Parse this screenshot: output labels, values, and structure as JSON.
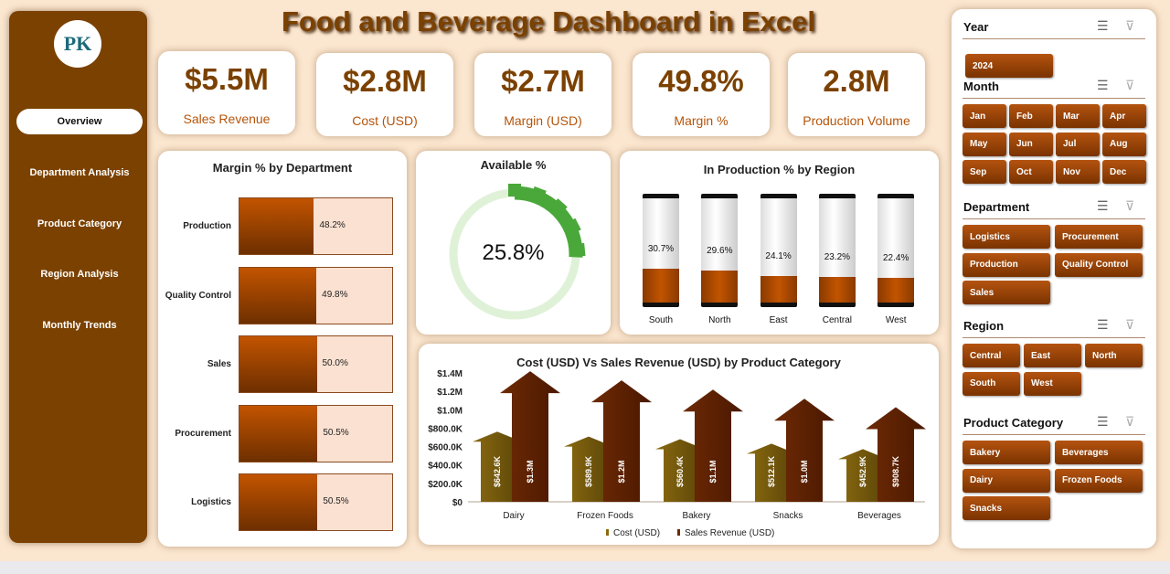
{
  "title": "Food and Beverage Dashboard in Excel",
  "logo_text": "PK",
  "nav": [
    {
      "label": "Overview",
      "active": true
    },
    {
      "label": "Department Analysis"
    },
    {
      "label": "Product Category"
    },
    {
      "label": "Region Analysis"
    },
    {
      "label": "Monthly Trends"
    }
  ],
  "kpis": [
    {
      "value": "$5.5M",
      "label": "Sales Revenue"
    },
    {
      "value": "$2.8M",
      "label": "Cost (USD)"
    },
    {
      "value": "$2.7M",
      "label": "Margin (USD)"
    },
    {
      "value": "49.8%",
      "label": "Margin %"
    },
    {
      "value": "2.8M",
      "label": "Production Volume"
    }
  ],
  "chart_data": [
    {
      "type": "bar",
      "title": "Margin % by Department",
      "categories": [
        "Production",
        "Quality Control",
        "Sales",
        "Procurement",
        "Logistics"
      ],
      "values": [
        48.2,
        49.8,
        50.0,
        50.5,
        50.5
      ],
      "labels": [
        "48.2%",
        "49.8%",
        "50.0%",
        "50.5%",
        "50.5%"
      ],
      "colors": {
        "fill": "#c25400",
        "track": "#fbe1d1"
      }
    },
    {
      "type": "pie",
      "title": "Available %",
      "value": 25.8,
      "label": "25.8%",
      "colors": {
        "value": "#4aa83a",
        "rest": "#dff2d8"
      }
    },
    {
      "type": "bar",
      "title": "In Production % by Region",
      "categories": [
        "South",
        "North",
        "East",
        "Central",
        "West"
      ],
      "values": [
        30.7,
        29.6,
        24.1,
        23.2,
        22.4
      ],
      "labels": [
        "30.7%",
        "29.6%",
        "24.1%",
        "23.2%",
        "22.4%"
      ]
    },
    {
      "type": "bar",
      "title": "Cost (USD) Vs Sales Revenue (USD) by Product Category",
      "categories": [
        "Dairy",
        "Frozen Foods",
        "Bakery",
        "Snacks",
        "Beverages"
      ],
      "ylim": [
        0,
        1400000
      ],
      "yticks": [
        "$0",
        "$200.0K",
        "$400.0K",
        "$600.0K",
        "$800.0K",
        "$1.0M",
        "$1.2M",
        "$1.4M"
      ],
      "legend_position": "bottom",
      "series": [
        {
          "name": "Cost (USD)",
          "values": [
            642600,
            589900,
            560400,
            512100,
            452900
          ],
          "labels": [
            "$642.6K",
            "$589.9K",
            "$560.4K",
            "$512.1K",
            "$452.9K"
          ],
          "color": "#8a6a10"
        },
        {
          "name": "Sales Revenue (USD)",
          "values": [
            1300000,
            1200000,
            1100000,
            1000000,
            908700
          ],
          "labels": [
            "$1.3M",
            "$1.2M",
            "$1.1M",
            "$1.0M",
            "$908.7K"
          ],
          "color": "#6e2a05"
        }
      ]
    }
  ],
  "slicers": [
    {
      "title": "Year",
      "items": [
        "2024"
      ]
    },
    {
      "title": "Month",
      "items": [
        "Jan",
        "Feb",
        "Mar",
        "Apr",
        "May",
        "Jun",
        "Jul",
        "Aug",
        "Sep",
        "Oct",
        "Nov",
        "Dec"
      ]
    },
    {
      "title": "Department",
      "items": [
        "Logistics",
        "Procurement",
        "Production",
        "Quality Control",
        "Sales"
      ]
    },
    {
      "title": "Region",
      "items": [
        "Central",
        "East",
        "North",
        "South",
        "West"
      ]
    },
    {
      "title": "Product Category",
      "items": [
        "Bakery",
        "Beverages",
        "Dairy",
        "Frozen Foods",
        "Snacks"
      ]
    }
  ]
}
